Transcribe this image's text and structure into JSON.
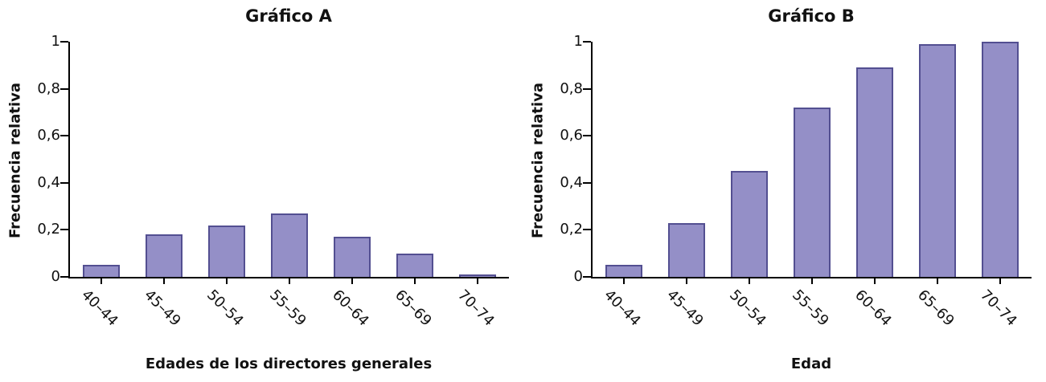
{
  "page": {
    "background": "#ffffff"
  },
  "charts_meta": {
    "bar_fill": "#948fc7",
    "bar_stroke": "#534f91",
    "axis_color": "#000000",
    "text_color": "#111111"
  },
  "chart_data": [
    {
      "type": "bar",
      "title": "Gráfico A",
      "categories": [
        "40–44",
        "45–49",
        "50–54",
        "55–59",
        "60–64",
        "65–69",
        "70–74"
      ],
      "values": [
        0.05,
        0.18,
        0.22,
        0.27,
        0.17,
        0.1,
        0.01
      ],
      "xlabel": "Edades de los directores generales",
      "ylabel": "Frecuencia relativa",
      "ylim": [
        0,
        1
      ],
      "yticks": [
        0,
        0.2,
        0.4,
        0.6,
        0.8,
        1
      ],
      "ytick_labels": [
        "0",
        "0,2",
        "0,4",
        "0,6",
        "0,8",
        "1"
      ],
      "grid": false,
      "legend": "none"
    },
    {
      "type": "bar",
      "title": "Gráfico B",
      "categories": [
        "40–44",
        "45–49",
        "50–54",
        "55–59",
        "60–64",
        "65–69",
        "70–74"
      ],
      "values": [
        0.05,
        0.23,
        0.45,
        0.72,
        0.89,
        0.99,
        1.0
      ],
      "xlabel": "Edad",
      "ylabel": "Frecuencia relativa",
      "ylim": [
        0,
        1
      ],
      "yticks": [
        0,
        0.2,
        0.4,
        0.6,
        0.8,
        1
      ],
      "ytick_labels": [
        "0",
        "0,2",
        "0,4",
        "0,6",
        "0,8",
        "1"
      ],
      "grid": false,
      "legend": "none"
    }
  ]
}
